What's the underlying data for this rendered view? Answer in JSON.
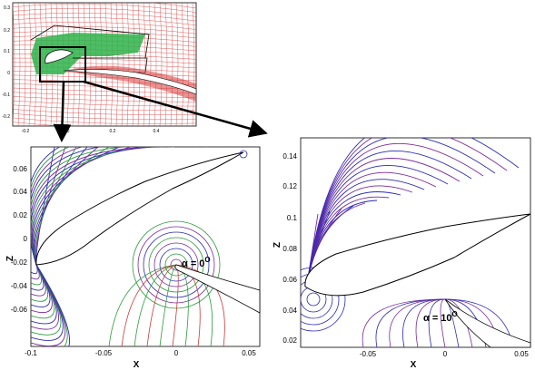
{
  "top_panel": {
    "y_ticks": [
      "0.3",
      "0.2",
      "0.1",
      "0",
      "-0.1",
      "-0.2"
    ],
    "x_ticks": [
      "-0.2",
      "0",
      "0.2",
      "0.4"
    ]
  },
  "left_panel": {
    "y_ticks": [
      "0.06",
      "0.04",
      "0.02",
      "0",
      "-0.02",
      "-0.04",
      "-0.06"
    ],
    "x_ticks": [
      "-0.1",
      "-0.05",
      "0",
      "0.05"
    ],
    "xlabel": "X",
    "ylabel": "Z",
    "annotation": "α = 0",
    "annotation_sup": "O"
  },
  "right_panel": {
    "y_ticks": [
      "0.14",
      "0.12",
      "0.1",
      "0.08",
      "0.06",
      "0.04",
      "0.02"
    ],
    "x_ticks": [
      "-0.05",
      "0",
      "0.05"
    ],
    "xlabel": "X",
    "ylabel": "Z",
    "annotation": "α = 10",
    "annotation_sup": "O"
  },
  "colors": {
    "grid": "#d63a3a",
    "green_region": "#2db34a",
    "blue_lines": "#2a2ab8",
    "purple_lines": "#7a2a9a",
    "green_lines": "#2a9a3a",
    "red_lines": "#c83a3a",
    "arrow": "#000000"
  }
}
